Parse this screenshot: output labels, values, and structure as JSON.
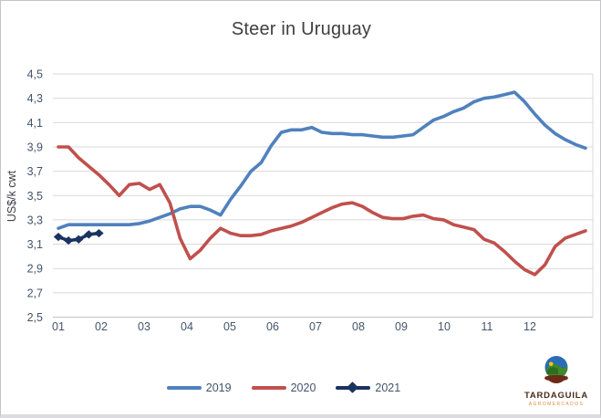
{
  "chart_data": {
    "type": "line",
    "title": "Steer in Uruguay",
    "ylabel": "US$/k cwt",
    "xlabel": "",
    "ylim": [
      2.5,
      4.5
    ],
    "ytick_values": [
      4.5,
      4.3,
      4.1,
      3.9,
      3.7,
      3.5,
      3.3,
      3.1,
      2.9,
      2.7,
      2.5
    ],
    "ytick_labels": [
      "4,5",
      "4,3",
      "4,1",
      "3,9",
      "3,7",
      "3,5",
      "3,3",
      "3,1",
      "2,9",
      "2,7",
      "2,5"
    ],
    "xtick_labels": [
      "01",
      "02",
      "03",
      "04",
      "05",
      "06",
      "07",
      "08",
      "09",
      "10",
      "11",
      "12"
    ],
    "x_spacing": "weekly observations, weeks 1-53 of the year",
    "grid": true,
    "legend_position": "bottom-center",
    "series": [
      {
        "name": "2019",
        "color": "#4f81bd",
        "marker": "none",
        "values": [
          3.23,
          3.26,
          3.26,
          3.26,
          3.26,
          3.26,
          3.26,
          3.26,
          3.27,
          3.29,
          3.32,
          3.35,
          3.39,
          3.41,
          3.41,
          3.38,
          3.34,
          3.47,
          3.58,
          3.7,
          3.77,
          3.91,
          4.02,
          4.04,
          4.04,
          4.06,
          4.02,
          4.01,
          4.01,
          4.0,
          4.0,
          3.99,
          3.98,
          3.98,
          3.99,
          4.0,
          4.06,
          4.12,
          4.15,
          4.19,
          4.22,
          4.27,
          4.3,
          4.31,
          4.33,
          4.35,
          4.27,
          4.17,
          4.08,
          4.01,
          3.96,
          3.92,
          3.89
        ]
      },
      {
        "name": "2020",
        "color": "#c0504d",
        "marker": "none",
        "values": [
          3.9,
          3.9,
          3.81,
          3.74,
          3.67,
          3.59,
          3.5,
          3.59,
          3.6,
          3.55,
          3.59,
          3.44,
          3.15,
          2.98,
          3.05,
          3.15,
          3.23,
          3.19,
          3.17,
          3.17,
          3.18,
          3.21,
          3.23,
          3.25,
          3.28,
          3.32,
          3.36,
          3.4,
          3.43,
          3.44,
          3.41,
          3.36,
          3.32,
          3.31,
          3.31,
          3.33,
          3.34,
          3.31,
          3.3,
          3.26,
          3.24,
          3.22,
          3.14,
          3.11,
          3.04,
          2.96,
          2.89,
          2.85,
          2.93,
          3.08,
          3.15,
          3.18,
          3.21
        ]
      },
      {
        "name": "2021",
        "color": "#1b3360",
        "marker": "diamond",
        "values": [
          3.16,
          3.13,
          3.14,
          3.18,
          3.19
        ]
      }
    ],
    "colors": {
      "gridline": "#d9d9d9",
      "axis_text": "#44546a",
      "title_text": "#3f3f3f"
    }
  },
  "logo": {
    "name": "TARDAGUILA",
    "subtext": "AGROMERCADOS"
  }
}
